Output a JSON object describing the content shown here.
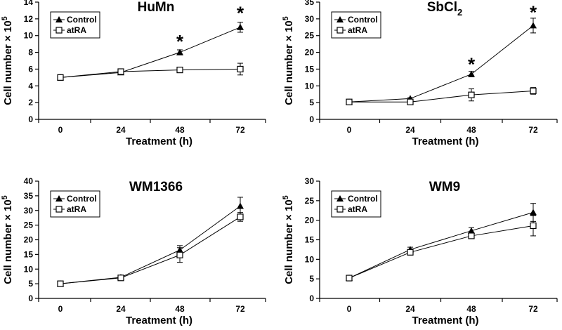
{
  "chart_data": [
    {
      "type": "line",
      "title": "HuMn",
      "xlabel": "Treatment (h)",
      "ylabel": "Cell number × 10",
      "ylabel_sup": "5",
      "x": [
        0,
        24,
        48,
        72
      ],
      "xticks": [
        "0",
        "24",
        "48",
        "72"
      ],
      "ylim": [
        0,
        14
      ],
      "yticks": [
        0,
        2,
        4,
        6,
        8,
        10,
        12,
        14
      ],
      "legend": "top-left",
      "series": [
        {
          "name": "Control",
          "marker": "filled-triangle",
          "values": [
            5.0,
            5.6,
            8.0,
            11.0
          ],
          "errors": [
            0.15,
            0.15,
            0.3,
            0.6
          ]
        },
        {
          "name": "atRA",
          "marker": "open-square",
          "values": [
            5.0,
            5.7,
            5.9,
            6.0
          ],
          "errors": [
            0.15,
            0.2,
            0.3,
            0.7
          ]
        }
      ],
      "significance": [
        {
          "label": "*",
          "x": 48,
          "y": 9.3
        },
        {
          "label": "*",
          "x": 72,
          "y": 12.7
        }
      ]
    },
    {
      "type": "line",
      "title": "SbCl",
      "title_sub": "2",
      "xlabel": "Treatment (h)",
      "ylabel": "Cell number × 10",
      "ylabel_sup": "5",
      "x": [
        0,
        24,
        48,
        72
      ],
      "xticks": [
        "0",
        "24",
        "48",
        "72"
      ],
      "ylim": [
        0,
        35
      ],
      "yticks": [
        0,
        5,
        10,
        15,
        20,
        25,
        30,
        35
      ],
      "legend": "top-left",
      "series": [
        {
          "name": "Control",
          "marker": "filled-triangle",
          "values": [
            5.2,
            6.2,
            13.5,
            28.0
          ],
          "errors": [
            0.3,
            0.3,
            0.8,
            2.2
          ]
        },
        {
          "name": "atRA",
          "marker": "open-square",
          "values": [
            5.2,
            5.2,
            7.3,
            8.5
          ],
          "errors": [
            0.3,
            0.3,
            1.8,
            1.0
          ]
        }
      ],
      "significance": [
        {
          "label": "*",
          "x": 48,
          "y": 16.5
        },
        {
          "label": "*",
          "x": 72,
          "y": 32.0
        }
      ]
    },
    {
      "type": "line",
      "title": "WM1366",
      "xlabel": "Treatment (h)",
      "ylabel": "Cell number × 10",
      "ylabel_sup": "5",
      "x": [
        0,
        24,
        48,
        72
      ],
      "xticks": [
        "0",
        "24",
        "48",
        "72"
      ],
      "ylim": [
        0,
        40
      ],
      "yticks": [
        0,
        5,
        10,
        15,
        20,
        25,
        30,
        35,
        40
      ],
      "legend": "top-left",
      "series": [
        {
          "name": "Control",
          "marker": "filled-triangle",
          "values": [
            5.0,
            7.2,
            16.5,
            31.5
          ],
          "errors": [
            0.2,
            0.5,
            1.5,
            3.0
          ]
        },
        {
          "name": "atRA",
          "marker": "open-square",
          "values": [
            5.0,
            7.0,
            14.8,
            27.8
          ],
          "errors": [
            0.2,
            0.6,
            2.5,
            1.5
          ]
        }
      ],
      "significance": []
    },
    {
      "type": "line",
      "title": "WM9",
      "xlabel": "Treatment (h)",
      "ylabel": "Cell number × 10",
      "ylabel_sup": "5",
      "x": [
        0,
        24,
        48,
        72
      ],
      "xticks": [
        "0",
        "24",
        "48",
        "72"
      ],
      "ylim": [
        0,
        30
      ],
      "yticks": [
        0,
        5,
        10,
        15,
        20,
        25,
        30
      ],
      "legend": "top-left",
      "series": [
        {
          "name": "Control",
          "marker": "filled-triangle",
          "values": [
            5.2,
            12.5,
            17.3,
            22.0
          ],
          "errors": [
            0.2,
            0.6,
            0.8,
            2.3
          ]
        },
        {
          "name": "atRA",
          "marker": "open-square",
          "values": [
            5.2,
            11.8,
            16.0,
            18.6
          ],
          "errors": [
            0.2,
            0.5,
            0.6,
            2.6
          ]
        }
      ],
      "significance": []
    }
  ]
}
